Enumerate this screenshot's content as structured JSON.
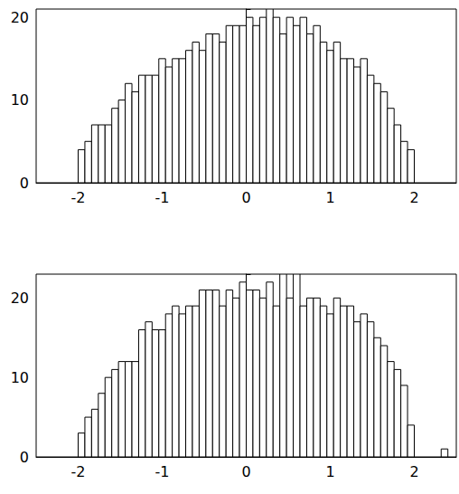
{
  "chart_data": [
    {
      "type": "histogram",
      "color": "#ffffff",
      "bins": [
        -2,
        -1.92,
        -1.84,
        -1.76,
        -1.68,
        -1.6,
        -1.52,
        -1.44,
        -1.36,
        -1.28,
        -1.2,
        -1.12,
        -1.04,
        -0.96,
        -0.88,
        -0.8,
        -0.72,
        -0.64,
        -0.56,
        -0.48,
        -0.4,
        -0.32,
        -0.24,
        -0.16,
        -0.08,
        0,
        0.08,
        0.16,
        0.24,
        0.32,
        0.4,
        0.48,
        0.56,
        0.64,
        0.72,
        0.8,
        0.88,
        0.96,
        1.04,
        1.12,
        1.2,
        1.28,
        1.36,
        1.44,
        1.52,
        1.6,
        1.68,
        1.76,
        1.84,
        1.92,
        2
      ],
      "counts": [
        4,
        5,
        7,
        7,
        7,
        9,
        10,
        12,
        11,
        13,
        13,
        13,
        15,
        14,
        15,
        15,
        16,
        17,
        16,
        18,
        18,
        17,
        19,
        19,
        19,
        20,
        19,
        20,
        22,
        20,
        18,
        20,
        19,
        20,
        18,
        19,
        17,
        16,
        17,
        15,
        15,
        14,
        15,
        13,
        12,
        11,
        9,
        7,
        5,
        4
      ],
      "xlim": [
        -2.5,
        2.5
      ],
      "xticks": [
        -2,
        -1,
        0,
        1,
        2
      ],
      "ylim": [
        0,
        21
      ],
      "yticks": [
        0,
        10,
        20
      ]
    },
    {
      "type": "histogram",
      "color": "#ffffff",
      "bins": [
        -2,
        -1.92,
        -1.84,
        -1.76,
        -1.68,
        -1.6,
        -1.52,
        -1.44,
        -1.36,
        -1.28,
        -1.2,
        -1.12,
        -1.04,
        -0.96,
        -0.88,
        -0.8,
        -0.72,
        -0.64,
        -0.56,
        -0.48,
        -0.4,
        -0.32,
        -0.24,
        -0.16,
        -0.08,
        0,
        0.08,
        0.16,
        0.24,
        0.32,
        0.4,
        0.48,
        0.56,
        0.64,
        0.72,
        0.8,
        0.88,
        0.96,
        1.04,
        1.12,
        1.2,
        1.28,
        1.36,
        1.44,
        1.52,
        1.6,
        1.68,
        1.76,
        1.84,
        1.92,
        2,
        2.08,
        2.16,
        2.24,
        2.32,
        2.4
      ],
      "counts": [
        3,
        5,
        6,
        8,
        10,
        11,
        12,
        12,
        12,
        16,
        17,
        16,
        16,
        18,
        19,
        18,
        19,
        19,
        21,
        21,
        21,
        19,
        21,
        20,
        22,
        21,
        21,
        20,
        22,
        19,
        23,
        20,
        23,
        19,
        20,
        20,
        19,
        18,
        20,
        19,
        19,
        17,
        18,
        17,
        15,
        14,
        12,
        11,
        9,
        4,
        0,
        0,
        0,
        0,
        1
      ],
      "xlim": [
        -2.5,
        2.5
      ],
      "xticks": [
        -2,
        -1,
        0,
        1,
        2
      ],
      "ylim": [
        0,
        23
      ],
      "yticks": [
        0,
        10,
        20
      ]
    }
  ]
}
